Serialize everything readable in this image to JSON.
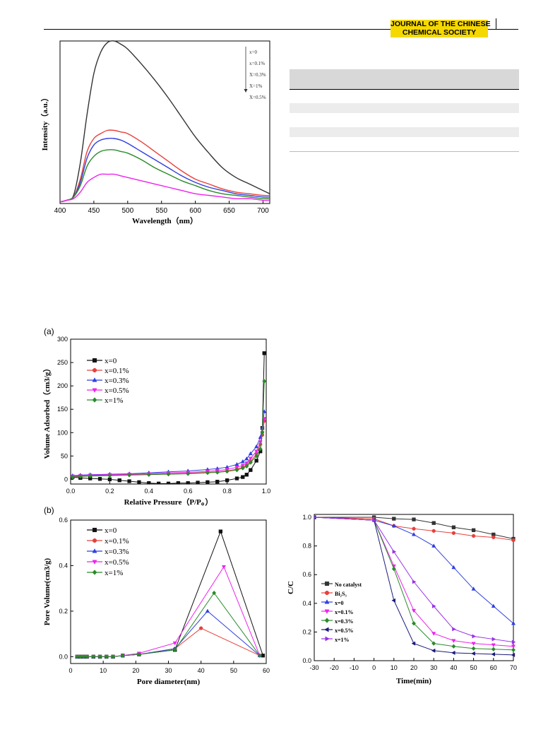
{
  "header": {
    "journal_line1": "JOURNAL OF THE CHINESE",
    "journal_line2": "CHEMICAL SOCIETY",
    "badge_color": "#f5d800"
  },
  "colors": {
    "black": "#333333",
    "red": "#e8403a",
    "blue": "#2f3fe0",
    "magenta": "#ee22ee",
    "green": "#2a8a2a",
    "navy": "#1a1a7a",
    "purple": "#9a30e8"
  },
  "chart_data": [
    {
      "id": "pl",
      "type": "line",
      "xlabel": "Wavelength（nm）",
      "ylabel": "Intensity（a.u.）",
      "xlim": [
        400,
        710
      ],
      "xticks": [
        400,
        450,
        500,
        550,
        600,
        650,
        700
      ],
      "ylim": [
        0,
        1
      ],
      "legend_placement": "top-right",
      "legend_arrow": true,
      "series": [
        {
          "name": "x=0",
          "color": "#333333",
          "x": [
            400,
            410,
            420,
            430,
            440,
            450,
            460,
            470,
            480,
            490,
            500,
            520,
            540,
            560,
            580,
            600,
            620,
            640,
            660,
            680,
            700,
            710
          ],
          "values": [
            0.01,
            0.02,
            0.05,
            0.25,
            0.55,
            0.8,
            0.93,
            0.99,
            1.0,
            0.98,
            0.95,
            0.86,
            0.76,
            0.65,
            0.53,
            0.41,
            0.31,
            0.22,
            0.16,
            0.12,
            0.08,
            0.06
          ]
        },
        {
          "name": "x=0.1%",
          "color": "#e8403a",
          "x": [
            400,
            410,
            420,
            430,
            440,
            450,
            460,
            470,
            480,
            490,
            500,
            520,
            540,
            560,
            580,
            600,
            620,
            640,
            660,
            680,
            700,
            710
          ],
          "values": [
            0.01,
            0.02,
            0.04,
            0.15,
            0.32,
            0.4,
            0.43,
            0.45,
            0.45,
            0.44,
            0.43,
            0.38,
            0.32,
            0.26,
            0.2,
            0.15,
            0.12,
            0.09,
            0.07,
            0.06,
            0.05,
            0.05
          ]
        },
        {
          "name": "X=0.3%",
          "color": "#2f3fe0",
          "x": [
            400,
            410,
            420,
            430,
            440,
            450,
            460,
            470,
            480,
            490,
            500,
            520,
            540,
            560,
            580,
            600,
            620,
            640,
            660,
            680,
            700,
            710
          ],
          "values": [
            0.01,
            0.02,
            0.04,
            0.13,
            0.28,
            0.36,
            0.39,
            0.4,
            0.4,
            0.39,
            0.37,
            0.32,
            0.27,
            0.22,
            0.17,
            0.13,
            0.1,
            0.08,
            0.06,
            0.05,
            0.04,
            0.04
          ]
        },
        {
          "name": "X=1%",
          "color": "#2a8a2a",
          "x": [
            400,
            410,
            420,
            430,
            440,
            450,
            460,
            470,
            480,
            490,
            500,
            520,
            540,
            560,
            580,
            600,
            620,
            640,
            660,
            680,
            700,
            710
          ],
          "values": [
            0.01,
            0.02,
            0.04,
            0.11,
            0.23,
            0.29,
            0.32,
            0.33,
            0.33,
            0.32,
            0.31,
            0.27,
            0.22,
            0.18,
            0.14,
            0.11,
            0.08,
            0.06,
            0.05,
            0.04,
            0.03,
            0.03
          ]
        },
        {
          "name": "X=0.5%",
          "color": "#ee22ee",
          "x": [
            400,
            410,
            420,
            430,
            440,
            450,
            460,
            470,
            480,
            490,
            500,
            520,
            540,
            560,
            580,
            600,
            620,
            640,
            660,
            680,
            700,
            710
          ],
          "values": [
            0.01,
            0.02,
            0.03,
            0.07,
            0.13,
            0.16,
            0.18,
            0.18,
            0.18,
            0.17,
            0.16,
            0.14,
            0.12,
            0.1,
            0.08,
            0.06,
            0.05,
            0.04,
            0.03,
            0.03,
            0.02,
            0.02
          ]
        }
      ]
    },
    {
      "id": "bet",
      "panel_label": "(a)",
      "type": "scatter",
      "xlabel": "Relative Pressure（P/P。）",
      "ylabel": "Volume Adsorbed（cm3/g）",
      "xlim": [
        0,
        1
      ],
      "xticks": [
        0.0,
        0.2,
        0.4,
        0.6,
        0.8,
        1.0
      ],
      "ylim": [
        -10,
        300
      ],
      "yticks": [
        0,
        50,
        100,
        150,
        200,
        250,
        300
      ],
      "legend_placement": "top-left",
      "series": [
        {
          "name": "x=0",
          "color": "#111111",
          "marker": "square",
          "x": [
            0.01,
            0.05,
            0.1,
            0.15,
            0.2,
            0.25,
            0.3,
            0.35,
            0.4,
            0.45,
            0.5,
            0.55,
            0.6,
            0.65,
            0.7,
            0.75,
            0.8,
            0.85,
            0.88,
            0.9,
            0.92,
            0.95,
            0.97,
            0.98,
            0.99
          ],
          "values": [
            5,
            3,
            2,
            1,
            0,
            -2,
            -4,
            -6,
            -8,
            -9,
            -9,
            -8,
            -8,
            -7,
            -6,
            -5,
            -2,
            2,
            5,
            10,
            20,
            40,
            60,
            110,
            270
          ]
        },
        {
          "name": "x=0.1%",
          "color": "#e8403a",
          "marker": "circle",
          "x": [
            0.01,
            0.05,
            0.1,
            0.2,
            0.3,
            0.4,
            0.5,
            0.6,
            0.7,
            0.75,
            0.8,
            0.85,
            0.88,
            0.9,
            0.92,
            0.95,
            0.97,
            0.98,
            0.99
          ],
          "values": [
            6,
            7,
            8,
            9,
            10,
            11,
            12,
            13,
            15,
            16,
            18,
            22,
            26,
            30,
            38,
            55,
            75,
            95,
            125
          ]
        },
        {
          "name": "x=0.3%",
          "color": "#2f3fe0",
          "marker": "triangle-up",
          "x": [
            0.01,
            0.05,
            0.1,
            0.2,
            0.3,
            0.4,
            0.5,
            0.6,
            0.7,
            0.75,
            0.8,
            0.85,
            0.88,
            0.9,
            0.92,
            0.95,
            0.97,
            0.98,
            0.99
          ],
          "values": [
            8,
            9,
            10,
            11,
            12,
            14,
            16,
            18,
            21,
            23,
            26,
            32,
            38,
            44,
            55,
            70,
            90,
            110,
            145
          ]
        },
        {
          "name": "x=0.5%",
          "color": "#ee22ee",
          "marker": "triangle-down",
          "x": [
            0.01,
            0.05,
            0.1,
            0.2,
            0.3,
            0.4,
            0.5,
            0.6,
            0.7,
            0.75,
            0.8,
            0.85,
            0.88,
            0.9,
            0.92,
            0.95,
            0.97,
            0.98,
            0.99
          ],
          "values": [
            7,
            8,
            9,
            10,
            11,
            12,
            14,
            15,
            17,
            19,
            21,
            26,
            30,
            35,
            45,
            60,
            80,
            100,
            130
          ]
        },
        {
          "name": "x=1%",
          "color": "#2a8a2a",
          "marker": "diamond",
          "x": [
            0.01,
            0.05,
            0.1,
            0.2,
            0.3,
            0.4,
            0.5,
            0.6,
            0.7,
            0.75,
            0.8,
            0.85,
            0.88,
            0.9,
            0.92,
            0.95,
            0.97,
            0.98,
            0.99
          ],
          "values": [
            5,
            6,
            7,
            8,
            9,
            10,
            11,
            12,
            14,
            15,
            17,
            20,
            24,
            28,
            36,
            50,
            65,
            100,
            210
          ]
        }
      ]
    },
    {
      "id": "pore",
      "panel_label": "(b)",
      "type": "line",
      "xlabel": "Pore diameter(nm)",
      "ylabel": "Pore Volume(cm3/g)",
      "xlim": [
        0,
        60
      ],
      "xticks": [
        0,
        10,
        20,
        30,
        40,
        50,
        60
      ],
      "ylim": [
        -0.03,
        0.6
      ],
      "yticks": [
        0.0,
        0.2,
        0.4,
        0.6
      ],
      "legend_placement": "top-left",
      "series": [
        {
          "name": "x=0",
          "color": "#111111",
          "marker": "square",
          "x": [
            2,
            3,
            4,
            5,
            7,
            9,
            11,
            13,
            16,
            21,
            32,
            46,
            59
          ],
          "values": [
            0,
            0,
            0,
            0,
            0,
            0,
            0,
            0,
            0.005,
            0.01,
            0.03,
            0.55,
            0.005
          ]
        },
        {
          "name": "x=0.1%",
          "color": "#e8403a",
          "marker": "circle",
          "x": [
            2,
            3,
            4,
            5,
            7,
            9,
            11,
            13,
            16,
            21,
            32,
            40,
            58
          ],
          "values": [
            0,
            0,
            0,
            0,
            0,
            0,
            0,
            0,
            0.005,
            0.01,
            0.035,
            0.125,
            0.005
          ]
        },
        {
          "name": "x=0.3%",
          "color": "#2f3fe0",
          "marker": "triangle-up",
          "x": [
            2,
            3,
            4,
            5,
            7,
            9,
            11,
            13,
            16,
            21,
            32,
            42,
            58
          ],
          "values": [
            0,
            0,
            0,
            0,
            0,
            0,
            0,
            0,
            0.005,
            0.01,
            0.035,
            0.2,
            0.005
          ]
        },
        {
          "name": "x=0.5%",
          "color": "#ee22ee",
          "marker": "triangle-down",
          "x": [
            2,
            3,
            4,
            5,
            7,
            9,
            11,
            13,
            16,
            21,
            32,
            47,
            58
          ],
          "values": [
            0,
            0,
            0,
            0,
            0,
            0,
            0,
            0,
            0.005,
            0.015,
            0.06,
            0.395,
            0.005
          ]
        },
        {
          "name": "x=1%",
          "color": "#2a8a2a",
          "marker": "diamond",
          "x": [
            2,
            3,
            4,
            5,
            7,
            9,
            11,
            13,
            16,
            21,
            32,
            44,
            58
          ],
          "values": [
            0,
            0,
            0,
            0,
            0,
            0,
            0,
            0,
            0.005,
            0.01,
            0.03,
            0.28,
            0.005
          ]
        }
      ]
    },
    {
      "id": "deg",
      "type": "line",
      "xlabel": "Time(min)",
      "ylabel": "C/C",
      "xlim": [
        -30,
        70
      ],
      "xticks": [
        -30,
        -20,
        -10,
        0,
        10,
        20,
        30,
        40,
        50,
        60,
        70
      ],
      "ylim": [
        0,
        1.02
      ],
      "yticks": [
        0.0,
        0.2,
        0.4,
        0.6,
        0.8,
        1.0
      ],
      "legend_placement": "bottom-left",
      "series": [
        {
          "name": "No catalyst",
          "color": "#333333",
          "marker": "square",
          "x": [
            -30,
            0,
            10,
            20,
            30,
            40,
            50,
            60,
            70
          ],
          "values": [
            1.0,
            1.0,
            0.99,
            0.985,
            0.96,
            0.93,
            0.91,
            0.88,
            0.85
          ]
        },
        {
          "name": "Bi2S3",
          "color": "#e8403a",
          "marker": "circle",
          "x": [
            -30,
            0,
            10,
            20,
            30,
            40,
            50,
            60,
            70
          ],
          "values": [
            1.0,
            0.99,
            0.94,
            0.92,
            0.905,
            0.89,
            0.87,
            0.86,
            0.84
          ]
        },
        {
          "name": "x=0",
          "color": "#2f3fe0",
          "marker": "triangle-up",
          "x": [
            -30,
            0,
            10,
            20,
            30,
            40,
            50,
            60,
            70
          ],
          "values": [
            1.0,
            0.98,
            0.94,
            0.88,
            0.8,
            0.65,
            0.5,
            0.38,
            0.26
          ]
        },
        {
          "name": "x=0.1%",
          "color": "#ee22ee",
          "marker": "triangle-down",
          "x": [
            -30,
            0,
            10,
            20,
            30,
            40,
            50,
            60,
            70
          ],
          "values": [
            1.0,
            0.98,
            0.66,
            0.35,
            0.19,
            0.14,
            0.12,
            0.11,
            0.1
          ]
        },
        {
          "name": "x=0.3%",
          "color": "#2a8a2a",
          "marker": "diamond",
          "x": [
            -30,
            0,
            10,
            20,
            30,
            40,
            50,
            60,
            70
          ],
          "values": [
            1.0,
            0.98,
            0.64,
            0.26,
            0.12,
            0.1,
            0.085,
            0.08,
            0.075
          ]
        },
        {
          "name": "x=0.5%",
          "color": "#1a1a7a",
          "marker": "triangle-left",
          "x": [
            -30,
            0,
            10,
            20,
            30,
            40,
            50,
            60,
            70
          ],
          "values": [
            1.0,
            0.98,
            0.42,
            0.12,
            0.07,
            0.055,
            0.05,
            0.045,
            0.04
          ]
        },
        {
          "name": "x=1%",
          "color": "#9a30e8",
          "marker": "triangle-right",
          "x": [
            -30,
            0,
            10,
            20,
            30,
            40,
            50,
            60,
            70
          ],
          "values": [
            1.0,
            0.98,
            0.76,
            0.55,
            0.38,
            0.22,
            0.17,
            0.15,
            0.13
          ]
        }
      ]
    }
  ]
}
